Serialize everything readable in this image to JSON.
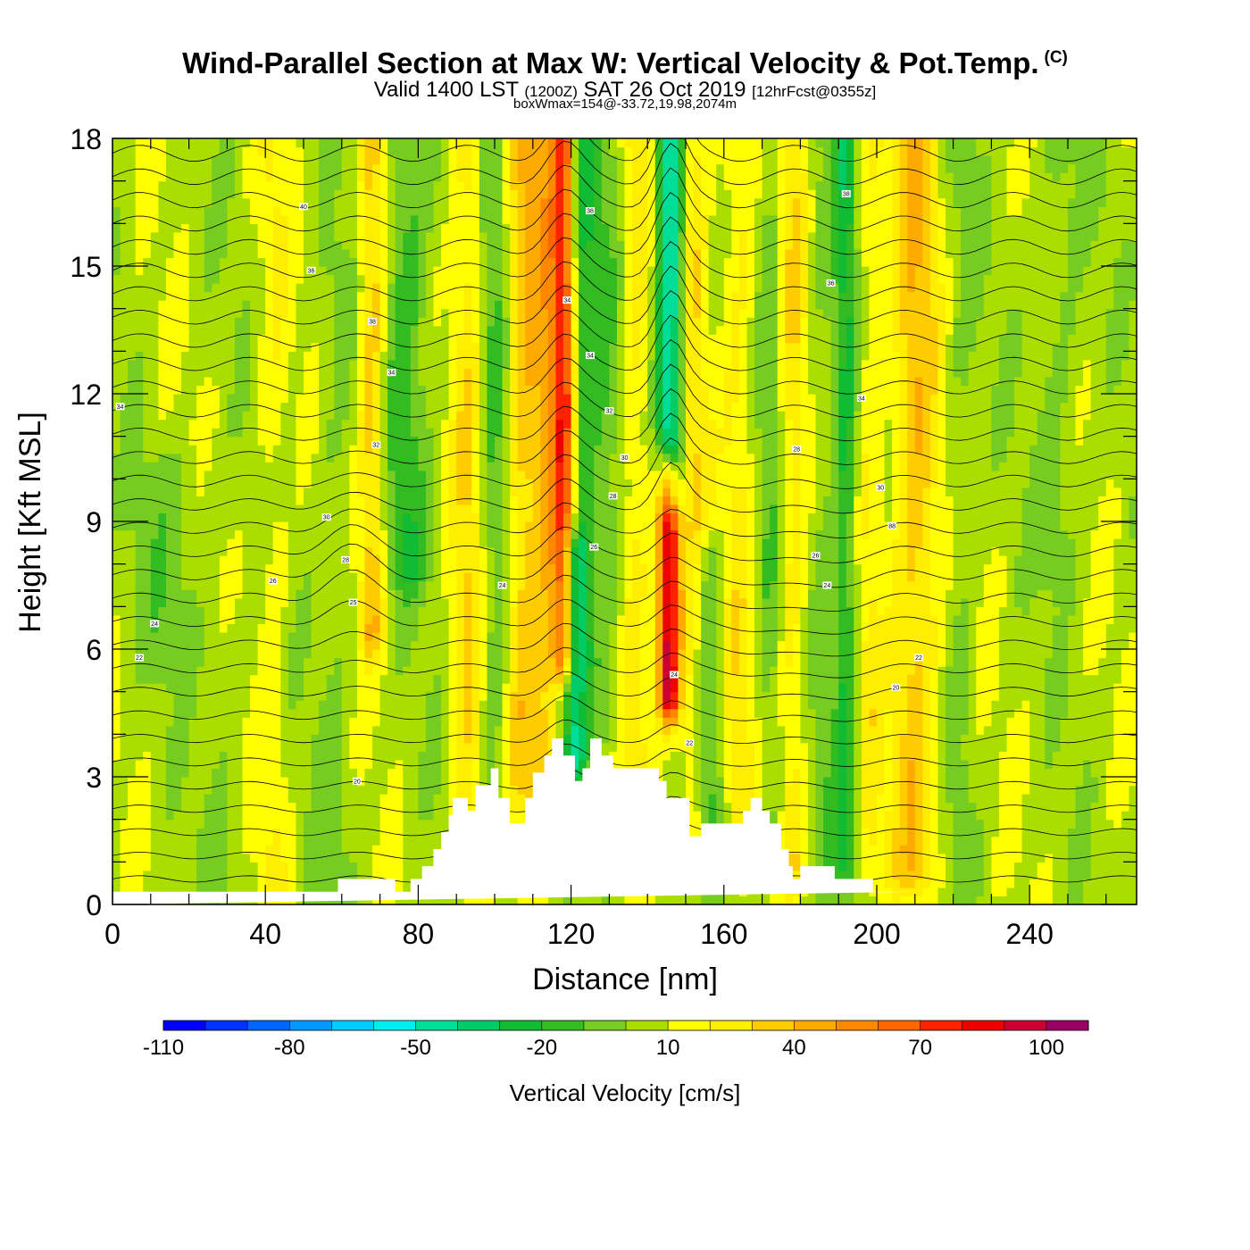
{
  "header": {
    "title": "Wind-Parallel Section at Max W: Vertical Velocity & Pot.Temp.",
    "copyright": "(C)",
    "valid_prefix": "Valid 1400 LST",
    "valid_utc": "(1200Z)",
    "valid_date": "SAT 26 Oct 2019",
    "forecast": "[12hrFcst@0355z]",
    "box_info": "boxWmax=154@-33.72,19.98,2074m"
  },
  "chart_data": {
    "type": "heatmap",
    "title": "Wind-Parallel Section at Max W: Vertical Velocity & Pot.Temp.",
    "xlabel": "Distance [nm]",
    "ylabel": "Height [Kft MSL]",
    "xlim": [
      0,
      268
    ],
    "ylim": [
      0,
      18
    ],
    "x_ticks": [
      "0",
      "40",
      "80",
      "120",
      "160",
      "200",
      "240"
    ],
    "y_ticks": [
      "0",
      "3",
      "6",
      "9",
      "12",
      "15",
      "18"
    ],
    "x_tick_values": [
      0,
      40,
      80,
      120,
      160,
      200,
      240
    ],
    "y_tick_values": [
      0,
      3,
      6,
      9,
      12,
      15,
      18
    ],
    "x_minor_step": 10,
    "y_minor_step": 1,
    "colorbar": {
      "title": "Vertical Velocity [cm/s]",
      "labels": [
        "-110",
        "-80",
        "-50",
        "-20",
        "10",
        "40",
        "70",
        "100"
      ],
      "label_values": [
        -110,
        -80,
        -50,
        -20,
        10,
        40,
        70,
        100
      ],
      "bounds": [
        -110,
        -100,
        -90,
        -80,
        -70,
        -60,
        -50,
        -40,
        -30,
        -20,
        -10,
        0,
        10,
        20,
        30,
        40,
        50,
        60,
        70,
        80,
        90,
        100,
        110
      ],
      "colors": [
        "#0000ff",
        "#0033ff",
        "#0066ff",
        "#0099ff",
        "#00ccff",
        "#00eeee",
        "#00dd99",
        "#00cc66",
        "#11bb33",
        "#33bb22",
        "#77cc22",
        "#aadd00",
        "#ffff00",
        "#ffee00",
        "#ffcc00",
        "#ffaa00",
        "#ff8800",
        "#ff6600",
        "#ff2200",
        "#ee0000",
        "#cc0033",
        "#990066"
      ]
    },
    "velocity_features": [
      {
        "x": 68,
        "z0": 6.5,
        "z1": 18,
        "width": 3.5,
        "value": 32
      },
      {
        "x": 77,
        "z0": 8,
        "z1": 18,
        "width": 6,
        "value": -22
      },
      {
        "x": 58,
        "z0": 0.5,
        "z1": 15,
        "width": 5,
        "value": -8
      },
      {
        "x": 93,
        "z0": 0.5,
        "z1": 18,
        "width": 4,
        "value": 22
      },
      {
        "x": 100,
        "z0": 3,
        "z1": 18,
        "width": 4,
        "value": -15
      },
      {
        "x": 107,
        "z0": 3,
        "z1": 18,
        "width": 4,
        "value": 28
      },
      {
        "x": 113,
        "z0": 2,
        "z1": 18,
        "width": 4,
        "value": 30
      },
      {
        "x": 118,
        "z0": 6,
        "z1": 18,
        "width": 3,
        "value": 62
      },
      {
        "x": 123,
        "z0": 6,
        "z1": 18,
        "width": 3,
        "value": -22
      },
      {
        "x": 121,
        "z0": 3.5,
        "z1": 8,
        "width": 3,
        "value": -42
      },
      {
        "x": 128,
        "z0": 4,
        "z1": 18,
        "width": 5,
        "value": -14
      },
      {
        "x": 137,
        "z0": 3.5,
        "z1": 18,
        "width": 4,
        "value": 18
      },
      {
        "x": 145.5,
        "z0": 5,
        "z1": 9.8,
        "width": 3,
        "value": 92
      },
      {
        "x": 146,
        "z0": 10,
        "z1": 18,
        "width": 3.5,
        "value": -62
      },
      {
        "x": 152,
        "z0": 2,
        "z1": 18,
        "width": 4,
        "value": 22
      },
      {
        "x": 156,
        "z0": 2,
        "z1": 8,
        "width": 4,
        "value": -24
      },
      {
        "x": 164,
        "z0": 2,
        "z1": 18,
        "width": 5,
        "value": 18
      },
      {
        "x": 172,
        "z0": 2,
        "z1": 18,
        "width": 4,
        "value": -14
      },
      {
        "x": 178,
        "z0": 1,
        "z1": 18,
        "width": 4,
        "value": 22
      },
      {
        "x": 186,
        "z0": 1,
        "z1": 18,
        "width": 5,
        "value": -8
      },
      {
        "x": 192,
        "z0": 1,
        "z1": 18,
        "width": 3,
        "value": -28
      },
      {
        "x": 198,
        "z0": 1,
        "z1": 18,
        "width": 4,
        "value": 14
      },
      {
        "x": 210,
        "z0": 1,
        "z1": 18,
        "width": 6,
        "value": 32
      },
      {
        "x": 222,
        "z0": 1,
        "z1": 18,
        "width": 4,
        "value": -8
      },
      {
        "x": 248,
        "z0": 8,
        "z1": 18,
        "width": 6,
        "value": -10
      },
      {
        "x": 30,
        "z0": 0.5,
        "z1": 6,
        "width": 5,
        "value": -6
      },
      {
        "x": 42,
        "z0": 0.5,
        "z1": 18,
        "width": 4,
        "value": 12
      },
      {
        "x": 15,
        "z0": 6,
        "z1": 10,
        "width": 10,
        "value": -10
      }
    ],
    "terrain": {
      "x": [
        0,
        59,
        59,
        74,
        74,
        78,
        78,
        81,
        81,
        84,
        84,
        86,
        86,
        88,
        88,
        89,
        89,
        93,
        93,
        95,
        95,
        99,
        99,
        101,
        101,
        104,
        104,
        108,
        108,
        110,
        110,
        113,
        113,
        115,
        115,
        118,
        118,
        121,
        121,
        123,
        123,
        125,
        125,
        128,
        128,
        131,
        131,
        143,
        143,
        145,
        145,
        151,
        151,
        154,
        154,
        165,
        165,
        167,
        167,
        170,
        170,
        172,
        172,
        175,
        175,
        177,
        177,
        178,
        178,
        180,
        180,
        189,
        189,
        199,
        199,
        210,
        210,
        268
      ],
      "z": [
        0.3,
        0.3,
        0.6,
        0.6,
        0.3,
        0.3,
        0.6,
        0.6,
        0.9,
        0.9,
        1.3,
        1.3,
        1.7,
        1.7,
        2.1,
        2.1,
        2.5,
        2.5,
        2.2,
        2.2,
        2.8,
        2.8,
        3.2,
        3.2,
        2.5,
        2.5,
        1.9,
        1.9,
        2.5,
        2.5,
        3.1,
        3.1,
        3.5,
        3.5,
        3.9,
        3.9,
        3.5,
        3.5,
        2.9,
        2.9,
        3.2,
        3.2,
        3.9,
        3.9,
        3.5,
        3.5,
        3.2,
        3.2,
        2.9,
        2.9,
        2.5,
        2.5,
        1.6,
        1.6,
        1.9,
        1.9,
        2.2,
        2.2,
        2.5,
        2.5,
        2.2,
        2.2,
        1.9,
        1.9,
        1.3,
        1.3,
        0.9,
        0.9,
        0.6,
        0.6,
        0.9,
        0.9,
        0.6,
        0.6,
        0.3,
        0.3
      ]
    },
    "contour_labels": [
      {
        "x": 50,
        "z": 16.4,
        "text": "40"
      },
      {
        "x": 52,
        "z": 14.9,
        "text": "36"
      },
      {
        "x": 68,
        "z": 13.7,
        "text": "38"
      },
      {
        "x": 73,
        "z": 12.5,
        "text": "34"
      },
      {
        "x": 69,
        "z": 10.8,
        "text": "32"
      },
      {
        "x": 56,
        "z": 9.1,
        "text": "30"
      },
      {
        "x": 61,
        "z": 8.1,
        "text": "28"
      },
      {
        "x": 42,
        "z": 7.6,
        "text": "26"
      },
      {
        "x": 63,
        "z": 7.1,
        "text": "25"
      },
      {
        "x": 11,
        "z": 6.6,
        "text": "24"
      },
      {
        "x": 7,
        "z": 5.8,
        "text": "22"
      },
      {
        "x": 2,
        "z": 11.7,
        "text": "34"
      },
      {
        "x": 125,
        "z": 16.3,
        "text": "38"
      },
      {
        "x": 119,
        "z": 14.2,
        "text": "34"
      },
      {
        "x": 125,
        "z": 12.9,
        "text": "34"
      },
      {
        "x": 130,
        "z": 11.6,
        "text": "32"
      },
      {
        "x": 134,
        "z": 10.5,
        "text": "30"
      },
      {
        "x": 131,
        "z": 9.6,
        "text": "28"
      },
      {
        "x": 126,
        "z": 8.4,
        "text": "26"
      },
      {
        "x": 102,
        "z": 7.5,
        "text": "24"
      },
      {
        "x": 147,
        "z": 5.4,
        "text": "24"
      },
      {
        "x": 151,
        "z": 3.8,
        "text": "22"
      },
      {
        "x": 64,
        "z": 2.9,
        "text": "20"
      },
      {
        "x": 192,
        "z": 16.7,
        "text": "38"
      },
      {
        "x": 188,
        "z": 14.6,
        "text": "36"
      },
      {
        "x": 196,
        "z": 11.9,
        "text": "34"
      },
      {
        "x": 179,
        "z": 10.7,
        "text": "28"
      },
      {
        "x": 201,
        "z": 9.8,
        "text": "30"
      },
      {
        "x": 204,
        "z": 8.9,
        "text": "88"
      },
      {
        "x": 184,
        "z": 8.2,
        "text": "26"
      },
      {
        "x": 187,
        "z": 7.5,
        "text": "24"
      },
      {
        "x": 211,
        "z": 5.8,
        "text": "22"
      },
      {
        "x": 205,
        "z": 5.1,
        "text": "20"
      }
    ]
  }
}
